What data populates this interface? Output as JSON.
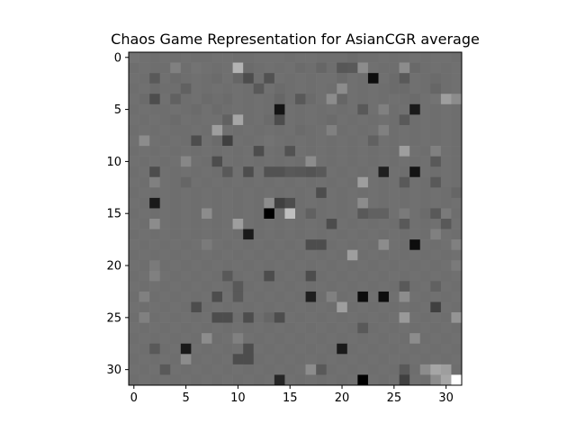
{
  "chart_data": {
    "type": "heatmap",
    "title": "Chaos Game Representation for AsianCGR average",
    "colormap": "gray",
    "xticks": [
      0,
      5,
      10,
      15,
      20,
      25,
      30
    ],
    "yticks": [
      0,
      5,
      10,
      15,
      20,
      25,
      30
    ],
    "xlim": [
      -0.5,
      31.5
    ],
    "ylim": [
      31.5,
      -0.5
    ],
    "grid": false,
    "value_range": [
      0,
      1
    ],
    "values": [
      [
        0.45,
        0.44,
        0.43,
        0.44,
        0.43,
        0.44,
        0.43,
        0.43,
        0.44,
        0.44,
        0.43,
        0.43,
        0.44,
        0.44,
        0.44,
        0.43,
        0.44,
        0.44,
        0.43,
        0.43,
        0.43,
        0.42,
        0.43,
        0.43,
        0.44,
        0.43,
        0.43,
        0.44,
        0.43,
        0.44,
        0.44,
        0.43
      ],
      [
        0.43,
        0.44,
        0.43,
        0.43,
        0.5,
        0.43,
        0.45,
        0.44,
        0.43,
        0.44,
        0.7,
        0.42,
        0.43,
        0.44,
        0.43,
        0.44,
        0.42,
        0.43,
        0.4,
        0.43,
        0.34,
        0.35,
        0.55,
        0.44,
        0.43,
        0.43,
        0.55,
        0.41,
        0.43,
        0.44,
        0.43,
        0.44
      ],
      [
        0.44,
        0.43,
        0.35,
        0.44,
        0.42,
        0.43,
        0.44,
        0.43,
        0.42,
        0.44,
        0.4,
        0.3,
        0.43,
        0.32,
        0.44,
        0.43,
        0.44,
        0.43,
        0.44,
        0.44,
        0.42,
        0.44,
        0.43,
        0.05,
        0.44,
        0.42,
        0.35,
        0.44,
        0.43,
        0.42,
        0.43,
        0.44
      ],
      [
        0.43,
        0.44,
        0.42,
        0.43,
        0.43,
        0.38,
        0.44,
        0.43,
        0.44,
        0.43,
        0.44,
        0.43,
        0.35,
        0.44,
        0.42,
        0.43,
        0.44,
        0.43,
        0.44,
        0.43,
        0.55,
        0.44,
        0.43,
        0.44,
        0.43,
        0.42,
        0.42,
        0.44,
        0.43,
        0.4,
        0.43,
        0.44
      ],
      [
        0.44,
        0.42,
        0.3,
        0.44,
        0.38,
        0.43,
        0.44,
        0.42,
        0.43,
        0.42,
        0.44,
        0.43,
        0.44,
        0.43,
        0.4,
        0.43,
        0.35,
        0.42,
        0.44,
        0.55,
        0.4,
        0.44,
        0.43,
        0.44,
        0.43,
        0.44,
        0.43,
        0.42,
        0.44,
        0.45,
        0.62,
        0.55
      ],
      [
        0.43,
        0.44,
        0.43,
        0.43,
        0.44,
        0.43,
        0.42,
        0.44,
        0.42,
        0.43,
        0.44,
        0.43,
        0.44,
        0.43,
        0.08,
        0.44,
        0.43,
        0.44,
        0.43,
        0.44,
        0.43,
        0.44,
        0.35,
        0.44,
        0.5,
        0.43,
        0.44,
        0.1,
        0.44,
        0.43,
        0.44,
        0.43
      ],
      [
        0.44,
        0.43,
        0.44,
        0.43,
        0.42,
        0.44,
        0.43,
        0.44,
        0.44,
        0.38,
        0.65,
        0.43,
        0.44,
        0.42,
        0.3,
        0.44,
        0.43,
        0.44,
        0.43,
        0.42,
        0.44,
        0.43,
        0.44,
        0.43,
        0.44,
        0.43,
        0.35,
        0.43,
        0.44,
        0.43,
        0.44,
        0.43
      ],
      [
        0.43,
        0.44,
        0.43,
        0.44,
        0.43,
        0.43,
        0.44,
        0.43,
        0.62,
        0.44,
        0.43,
        0.44,
        0.43,
        0.44,
        0.43,
        0.44,
        0.42,
        0.43,
        0.44,
        0.5,
        0.43,
        0.44,
        0.43,
        0.44,
        0.5,
        0.43,
        0.44,
        0.43,
        0.44,
        0.43,
        0.44,
        0.43
      ],
      [
        0.44,
        0.55,
        0.44,
        0.43,
        0.44,
        0.43,
        0.3,
        0.44,
        0.42,
        0.25,
        0.44,
        0.43,
        0.44,
        0.45,
        0.44,
        0.43,
        0.44,
        0.43,
        0.44,
        0.43,
        0.44,
        0.43,
        0.44,
        0.38,
        0.44,
        0.43,
        0.44,
        0.43,
        0.44,
        0.43,
        0.44,
        0.43
      ],
      [
        0.43,
        0.44,
        0.43,
        0.44,
        0.43,
        0.44,
        0.43,
        0.44,
        0.43,
        0.44,
        0.43,
        0.44,
        0.3,
        0.44,
        0.43,
        0.32,
        0.44,
        0.43,
        0.44,
        0.43,
        0.44,
        0.43,
        0.44,
        0.43,
        0.44,
        0.43,
        0.62,
        0.44,
        0.43,
        0.5,
        0.44,
        0.43
      ],
      [
        0.44,
        0.43,
        0.44,
        0.43,
        0.44,
        0.53,
        0.44,
        0.43,
        0.3,
        0.44,
        0.43,
        0.44,
        0.43,
        0.44,
        0.43,
        0.44,
        0.43,
        0.55,
        0.44,
        0.43,
        0.44,
        0.43,
        0.44,
        0.43,
        0.44,
        0.43,
        0.44,
        0.43,
        0.44,
        0.35,
        0.44,
        0.43
      ],
      [
        0.43,
        0.44,
        0.3,
        0.44,
        0.43,
        0.44,
        0.43,
        0.44,
        0.43,
        0.35,
        0.44,
        0.3,
        0.44,
        0.32,
        0.32,
        0.35,
        0.34,
        0.33,
        0.35,
        0.44,
        0.43,
        0.44,
        0.43,
        0.44,
        0.12,
        0.44,
        0.43,
        0.08,
        0.44,
        0.43,
        0.44,
        0.43
      ],
      [
        0.44,
        0.43,
        0.5,
        0.44,
        0.43,
        0.4,
        0.44,
        0.43,
        0.44,
        0.43,
        0.44,
        0.43,
        0.44,
        0.43,
        0.44,
        0.43,
        0.44,
        0.43,
        0.44,
        0.43,
        0.44,
        0.43,
        0.62,
        0.44,
        0.43,
        0.44,
        0.35,
        0.44,
        0.43,
        0.35,
        0.44,
        0.43
      ],
      [
        0.43,
        0.44,
        0.43,
        0.44,
        0.43,
        0.44,
        0.43,
        0.44,
        0.43,
        0.44,
        0.43,
        0.44,
        0.43,
        0.44,
        0.43,
        0.44,
        0.43,
        0.44,
        0.3,
        0.44,
        0.43,
        0.44,
        0.43,
        0.44,
        0.43,
        0.44,
        0.43,
        0.44,
        0.43,
        0.44,
        0.43,
        0.4
      ],
      [
        0.44,
        0.43,
        0.1,
        0.44,
        0.43,
        0.44,
        0.43,
        0.44,
        0.43,
        0.44,
        0.43,
        0.44,
        0.43,
        0.55,
        0.25,
        0.3,
        0.43,
        0.44,
        0.43,
        0.44,
        0.43,
        0.44,
        0.55,
        0.44,
        0.43,
        0.44,
        0.43,
        0.44,
        0.43,
        0.44,
        0.43,
        0.44
      ],
      [
        0.43,
        0.44,
        0.43,
        0.44,
        0.43,
        0.44,
        0.43,
        0.55,
        0.43,
        0.44,
        0.43,
        0.44,
        0.43,
        0.0,
        0.43,
        0.75,
        0.43,
        0.38,
        0.43,
        0.44,
        0.43,
        0.44,
        0.35,
        0.38,
        0.38,
        0.44,
        0.48,
        0.44,
        0.42,
        0.35,
        0.48,
        0.43
      ],
      [
        0.44,
        0.43,
        0.55,
        0.44,
        0.43,
        0.44,
        0.43,
        0.44,
        0.43,
        0.44,
        0.62,
        0.44,
        0.43,
        0.44,
        0.43,
        0.44,
        0.43,
        0.44,
        0.43,
        0.3,
        0.44,
        0.43,
        0.44,
        0.43,
        0.44,
        0.43,
        0.35,
        0.44,
        0.43,
        0.44,
        0.35,
        0.44
      ],
      [
        0.43,
        0.44,
        0.43,
        0.44,
        0.43,
        0.44,
        0.43,
        0.44,
        0.43,
        0.44,
        0.43,
        0.1,
        0.43,
        0.44,
        0.43,
        0.44,
        0.43,
        0.44,
        0.43,
        0.44,
        0.43,
        0.44,
        0.43,
        0.44,
        0.43,
        0.44,
        0.43,
        0.44,
        0.43,
        0.5,
        0.44,
        0.43
      ],
      [
        0.44,
        0.43,
        0.44,
        0.43,
        0.44,
        0.43,
        0.44,
        0.48,
        0.44,
        0.43,
        0.44,
        0.43,
        0.44,
        0.43,
        0.44,
        0.43,
        0.44,
        0.3,
        0.3,
        0.43,
        0.44,
        0.43,
        0.44,
        0.43,
        0.55,
        0.44,
        0.43,
        0.05,
        0.44,
        0.43,
        0.44,
        0.5
      ],
      [
        0.43,
        0.44,
        0.43,
        0.44,
        0.43,
        0.44,
        0.43,
        0.44,
        0.43,
        0.44,
        0.43,
        0.44,
        0.43,
        0.44,
        0.43,
        0.44,
        0.43,
        0.44,
        0.43,
        0.44,
        0.43,
        0.62,
        0.43,
        0.44,
        0.43,
        0.44,
        0.43,
        0.44,
        0.43,
        0.44,
        0.43,
        0.44
      ],
      [
        0.44,
        0.43,
        0.48,
        0.43,
        0.44,
        0.43,
        0.44,
        0.43,
        0.44,
        0.43,
        0.44,
        0.43,
        0.44,
        0.43,
        0.44,
        0.43,
        0.44,
        0.43,
        0.44,
        0.43,
        0.44,
        0.43,
        0.44,
        0.43,
        0.44,
        0.43,
        0.44,
        0.43,
        0.44,
        0.43,
        0.44,
        0.48
      ],
      [
        0.43,
        0.44,
        0.5,
        0.44,
        0.43,
        0.44,
        0.43,
        0.44,
        0.43,
        0.35,
        0.43,
        0.44,
        0.43,
        0.3,
        0.43,
        0.44,
        0.43,
        0.3,
        0.43,
        0.44,
        0.43,
        0.44,
        0.43,
        0.44,
        0.43,
        0.44,
        0.43,
        0.44,
        0.43,
        0.44,
        0.43,
        0.44
      ],
      [
        0.44,
        0.43,
        0.44,
        0.43,
        0.44,
        0.43,
        0.44,
        0.43,
        0.44,
        0.43,
        0.35,
        0.43,
        0.44,
        0.43,
        0.44,
        0.43,
        0.44,
        0.43,
        0.44,
        0.43,
        0.44,
        0.43,
        0.44,
        0.43,
        0.44,
        0.43,
        0.35,
        0.43,
        0.44,
        0.38,
        0.44,
        0.43
      ],
      [
        0.43,
        0.5,
        0.43,
        0.44,
        0.43,
        0.44,
        0.43,
        0.44,
        0.3,
        0.44,
        0.35,
        0.44,
        0.43,
        0.44,
        0.43,
        0.44,
        0.43,
        0.12,
        0.43,
        0.5,
        0.43,
        0.44,
        0.05,
        0.44,
        0.05,
        0.44,
        0.55,
        0.44,
        0.43,
        0.44,
        0.43,
        0.44
      ],
      [
        0.44,
        0.43,
        0.44,
        0.43,
        0.44,
        0.43,
        0.3,
        0.43,
        0.44,
        0.43,
        0.44,
        0.43,
        0.44,
        0.43,
        0.44,
        0.43,
        0.44,
        0.43,
        0.44,
        0.43,
        0.62,
        0.43,
        0.44,
        0.43,
        0.44,
        0.43,
        0.44,
        0.43,
        0.44,
        0.25,
        0.44,
        0.43
      ],
      [
        0.43,
        0.5,
        0.43,
        0.44,
        0.43,
        0.44,
        0.43,
        0.44,
        0.3,
        0.3,
        0.43,
        0.3,
        0.43,
        0.4,
        0.3,
        0.44,
        0.43,
        0.44,
        0.43,
        0.44,
        0.43,
        0.44,
        0.43,
        0.44,
        0.43,
        0.44,
        0.6,
        0.44,
        0.43,
        0.44,
        0.43,
        0.58
      ],
      [
        0.44,
        0.43,
        0.44,
        0.43,
        0.44,
        0.43,
        0.44,
        0.43,
        0.44,
        0.43,
        0.44,
        0.43,
        0.44,
        0.43,
        0.44,
        0.43,
        0.44,
        0.43,
        0.44,
        0.43,
        0.44,
        0.43,
        0.35,
        0.43,
        0.44,
        0.43,
        0.44,
        0.43,
        0.44,
        0.43,
        0.44,
        0.43
      ],
      [
        0.43,
        0.44,
        0.43,
        0.44,
        0.43,
        0.44,
        0.43,
        0.55,
        0.43,
        0.44,
        0.5,
        0.44,
        0.43,
        0.44,
        0.43,
        0.44,
        0.43,
        0.44,
        0.43,
        0.44,
        0.43,
        0.44,
        0.43,
        0.44,
        0.43,
        0.44,
        0.43,
        0.55,
        0.43,
        0.44,
        0.43,
        0.44
      ],
      [
        0.44,
        0.43,
        0.35,
        0.43,
        0.44,
        0.1,
        0.44,
        0.43,
        0.44,
        0.43,
        0.44,
        0.3,
        0.44,
        0.43,
        0.44,
        0.43,
        0.44,
        0.43,
        0.44,
        0.43,
        0.1,
        0.43,
        0.44,
        0.43,
        0.44,
        0.43,
        0.44,
        0.43,
        0.44,
        0.43,
        0.44,
        0.43
      ],
      [
        0.43,
        0.44,
        0.43,
        0.44,
        0.43,
        0.55,
        0.43,
        0.44,
        0.43,
        0.44,
        0.3,
        0.3,
        0.43,
        0.44,
        0.43,
        0.44,
        0.43,
        0.44,
        0.43,
        0.44,
        0.43,
        0.44,
        0.43,
        0.44,
        0.43,
        0.44,
        0.43,
        0.44,
        0.43,
        0.44,
        0.43,
        0.44
      ],
      [
        0.44,
        0.43,
        0.44,
        0.35,
        0.44,
        0.43,
        0.44,
        0.43,
        0.44,
        0.43,
        0.44,
        0.43,
        0.44,
        0.43,
        0.44,
        0.43,
        0.44,
        0.55,
        0.35,
        0.43,
        0.44,
        0.43,
        0.44,
        0.43,
        0.44,
        0.43,
        0.35,
        0.43,
        0.55,
        0.65,
        0.62,
        0.43
      ],
      [
        0.43,
        0.44,
        0.43,
        0.44,
        0.43,
        0.44,
        0.43,
        0.44,
        0.43,
        0.44,
        0.43,
        0.44,
        0.43,
        0.44,
        0.15,
        0.44,
        0.43,
        0.44,
        0.43,
        0.44,
        0.43,
        0.44,
        0.0,
        0.44,
        0.43,
        0.44,
        0.25,
        0.44,
        0.43,
        0.55,
        0.65,
        1.0
      ]
    ]
  }
}
